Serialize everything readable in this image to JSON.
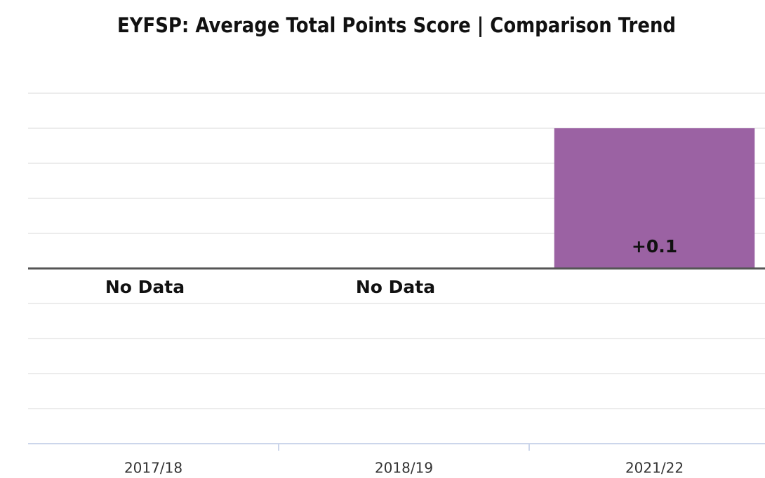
{
  "chart_data": {
    "type": "bar",
    "title": "EYFSP: Average Total Points Score | Comparison Trend",
    "categories": [
      "2017/18",
      "2018/19",
      "2021/22"
    ],
    "values": [
      null,
      null,
      0.1
    ],
    "value_labels": [
      "No Data",
      "No Data",
      "+0.1"
    ],
    "color": "#9b62a3",
    "ylim": [
      -0.125,
      0.125
    ],
    "yticks": [
      -0.125,
      -0.1,
      -0.075,
      -0.05,
      -0.025,
      0,
      0.025,
      0.05,
      0.075,
      0.1,
      0.125
    ],
    "grid": true
  }
}
